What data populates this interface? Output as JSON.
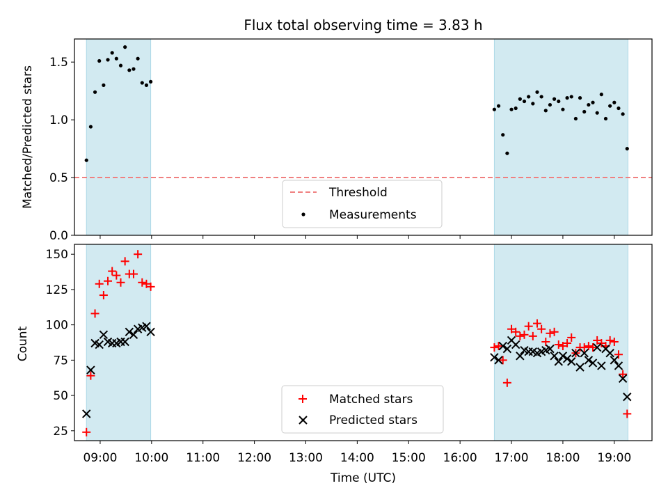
{
  "chart_data": [
    {
      "type": "scatter",
      "title": "Flux total observing time = 3.83 h",
      "ylabel": "Matched/Predicted stars",
      "xlabel": "",
      "ylim": [
        0,
        1.7
      ],
      "y_ticks": [
        "0.0",
        "0.5",
        "1.0",
        "1.5"
      ],
      "shaded_time_ranges": [
        [
          "08:44",
          "09:59"
        ],
        [
          "16:40",
          "19:16"
        ]
      ],
      "shade_color": "#add8e6",
      "threshold": {
        "name": "Threshold",
        "value": 0.5,
        "color": "#f08080"
      },
      "series": [
        {
          "name": "Measurements",
          "color": "#000000",
          "points": [
            [
              "08:44",
              0.65
            ],
            [
              "08:49",
              0.94
            ],
            [
              "08:54",
              1.24
            ],
            [
              "08:59",
              1.51
            ],
            [
              "09:04",
              1.3
            ],
            [
              "09:09",
              1.52
            ],
            [
              "09:14",
              1.58
            ],
            [
              "09:19",
              1.53
            ],
            [
              "09:24",
              1.47
            ],
            [
              "09:29",
              1.63
            ],
            [
              "09:34",
              1.43
            ],
            [
              "09:39",
              1.44
            ],
            [
              "09:44",
              1.53
            ],
            [
              "09:49",
              1.32
            ],
            [
              "09:54",
              1.3
            ],
            [
              "09:59",
              1.33
            ],
            [
              "16:40",
              1.09
            ],
            [
              "16:45",
              1.12
            ],
            [
              "16:50",
              0.87
            ],
            [
              "16:55",
              0.71
            ],
            [
              "17:00",
              1.09
            ],
            [
              "17:05",
              1.1
            ],
            [
              "17:10",
              1.18
            ],
            [
              "17:15",
              1.16
            ],
            [
              "17:20",
              1.2
            ],
            [
              "17:25",
              1.14
            ],
            [
              "17:30",
              1.24
            ],
            [
              "17:35",
              1.2
            ],
            [
              "17:40",
              1.08
            ],
            [
              "17:45",
              1.13
            ],
            [
              "17:50",
              1.18
            ],
            [
              "17:55",
              1.16
            ],
            [
              "18:00",
              1.09
            ],
            [
              "18:05",
              1.19
            ],
            [
              "18:10",
              1.2
            ],
            [
              "18:15",
              1.01
            ],
            [
              "18:20",
              1.19
            ],
            [
              "18:25",
              1.07
            ],
            [
              "18:30",
              1.13
            ],
            [
              "18:35",
              1.15
            ],
            [
              "18:40",
              1.06
            ],
            [
              "18:45",
              1.22
            ],
            [
              "18:50",
              1.01
            ],
            [
              "18:55",
              1.12
            ],
            [
              "19:00",
              1.15
            ],
            [
              "19:05",
              1.1
            ],
            [
              "19:10",
              1.05
            ],
            [
              "19:15",
              0.75
            ]
          ]
        }
      ],
      "legend": {
        "placement": "lower-center",
        "entries": [
          "Threshold",
          "Measurements"
        ]
      }
    },
    {
      "type": "scatter",
      "title": "",
      "ylabel": "Count",
      "xlabel": "Time (UTC)",
      "ylim": [
        18,
        157
      ],
      "y_ticks": [
        "25",
        "50",
        "75",
        "100",
        "125",
        "150"
      ],
      "x_range": [
        "08:30",
        "19:44"
      ],
      "x_ticks": [
        "09:00",
        "10:00",
        "11:00",
        "12:00",
        "13:00",
        "14:00",
        "15:00",
        "16:00",
        "17:00",
        "18:00",
        "19:00"
      ],
      "shaded_time_ranges": [
        [
          "08:44",
          "09:59"
        ],
        [
          "16:40",
          "19:16"
        ]
      ],
      "shade_color": "#add8e6",
      "series": [
        {
          "name": "Matched stars",
          "marker": "plus",
          "color": "#ff0000",
          "points": [
            [
              "08:44",
              24
            ],
            [
              "08:49",
              64
            ],
            [
              "08:54",
              108
            ],
            [
              "08:59",
              129
            ],
            [
              "09:04",
              121
            ],
            [
              "09:09",
              131
            ],
            [
              "09:14",
              138
            ],
            [
              "09:19",
              135
            ],
            [
              "09:24",
              130
            ],
            [
              "09:29",
              145
            ],
            [
              "09:34",
              136
            ],
            [
              "09:39",
              136
            ],
            [
              "09:44",
              150
            ],
            [
              "09:49",
              130
            ],
            [
              "09:54",
              129
            ],
            [
              "09:59",
              127
            ],
            [
              "16:40",
              84
            ],
            [
              "16:45",
              85
            ],
            [
              "16:50",
              75
            ],
            [
              "16:55",
              59
            ],
            [
              "17:00",
              97
            ],
            [
              "17:05",
              95
            ],
            [
              "17:10",
              92
            ],
            [
              "17:15",
              93
            ],
            [
              "17:20",
              99
            ],
            [
              "17:25",
              92
            ],
            [
              "17:30",
              101
            ],
            [
              "17:35",
              97
            ],
            [
              "17:40",
              88
            ],
            [
              "17:45",
              94
            ],
            [
              "17:50",
              95
            ],
            [
              "17:55",
              86
            ],
            [
              "18:00",
              85
            ],
            [
              "18:05",
              87
            ],
            [
              "18:10",
              91
            ],
            [
              "18:15",
              80
            ],
            [
              "18:20",
              84
            ],
            [
              "18:25",
              84
            ],
            [
              "18:30",
              85
            ],
            [
              "18:35",
              84
            ],
            [
              "18:40",
              89
            ],
            [
              "18:45",
              87
            ],
            [
              "18:50",
              85
            ],
            [
              "18:55",
              89
            ],
            [
              "19:00",
              88
            ],
            [
              "19:05",
              79
            ],
            [
              "19:10",
              65
            ],
            [
              "19:15",
              37
            ]
          ]
        },
        {
          "name": "Predicted stars",
          "marker": "x",
          "color": "#000000",
          "points": [
            [
              "08:44",
              37
            ],
            [
              "08:49",
              68
            ],
            [
              "08:54",
              87
            ],
            [
              "08:59",
              86
            ],
            [
              "09:04",
              93
            ],
            [
              "09:09",
              88
            ],
            [
              "09:14",
              87
            ],
            [
              "09:19",
              87
            ],
            [
              "09:24",
              88
            ],
            [
              "09:29",
              88
            ],
            [
              "09:34",
              95
            ],
            [
              "09:39",
              93
            ],
            [
              "09:44",
              97
            ],
            [
              "09:49",
              98
            ],
            [
              "09:54",
              99
            ],
            [
              "09:59",
              95
            ],
            [
              "16:40",
              77
            ],
            [
              "16:45",
              75
            ],
            [
              "16:50",
              85
            ],
            [
              "16:55",
              83
            ],
            [
              "17:00",
              89
            ],
            [
              "17:05",
              86
            ],
            [
              "17:10",
              78
            ],
            [
              "17:15",
              82
            ],
            [
              "17:20",
              81
            ],
            [
              "17:25",
              81
            ],
            [
              "17:30",
              80
            ],
            [
              "17:35",
              81
            ],
            [
              "17:40",
              82
            ],
            [
              "17:45",
              83
            ],
            [
              "17:50",
              78
            ],
            [
              "17:55",
              74
            ],
            [
              "18:00",
              78
            ],
            [
              "18:05",
              76
            ],
            [
              "18:10",
              74
            ],
            [
              "18:15",
              80
            ],
            [
              "18:20",
              70
            ],
            [
              "18:25",
              80
            ],
            [
              "18:30",
              75
            ],
            [
              "18:35",
              73
            ],
            [
              "18:40",
              84
            ],
            [
              "18:45",
              71
            ],
            [
              "18:50",
              83
            ],
            [
              "18:55",
              80
            ],
            [
              "19:00",
              75
            ],
            [
              "19:05",
              71
            ],
            [
              "19:10",
              62
            ],
            [
              "19:15",
              49
            ]
          ]
        }
      ],
      "legend": {
        "placement": "lower-center",
        "entries": [
          "Matched stars",
          "Predicted stars"
        ]
      }
    }
  ]
}
